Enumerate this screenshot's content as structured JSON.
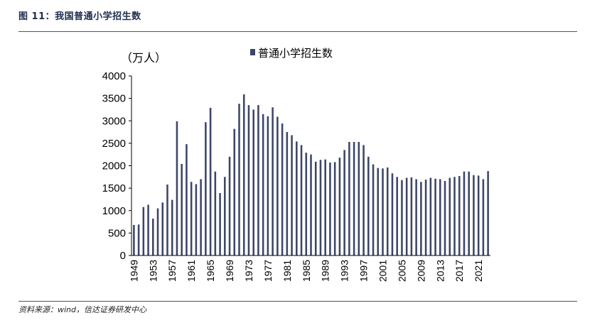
{
  "figure_title": "图 11：我国普通小学招生数",
  "source": "资料来源：wind，信达证券研发中心",
  "colors": {
    "bar": "#3d4668",
    "rule": "#555555",
    "title": "#1f2d50"
  },
  "chart_data": {
    "type": "bar",
    "title": "",
    "xlabel": "",
    "ylabel": "（万人）",
    "ylim": [
      0,
      4000
    ],
    "yticks": [
      0,
      500,
      1000,
      1500,
      2000,
      2500,
      3000,
      3500,
      4000
    ],
    "grid": false,
    "legend_position": "top-center",
    "series": [
      {
        "name": "普通小学招生数",
        "values": [
          680,
          690,
          1080,
          1130,
          820,
          1050,
          1180,
          1580,
          1240,
          2990,
          2040,
          2480,
          1640,
          1590,
          1700,
          2970,
          3290,
          1870,
          1390,
          1750,
          2200,
          2820,
          3380,
          3590,
          3350,
          3250,
          3350,
          3150,
          3100,
          3300,
          3090,
          2940,
          2750,
          2680,
          2540,
          2460,
          2290,
          2250,
          2090,
          2130,
          2140,
          2070,
          2080,
          2180,
          2350,
          2530,
          2530,
          2530,
          2460,
          2200,
          2030,
          1950,
          1940,
          1960,
          1830,
          1750,
          1680,
          1730,
          1740,
          1700,
          1640,
          1690,
          1730,
          1710,
          1700,
          1660,
          1730,
          1750,
          1770,
          1870,
          1870,
          1790,
          1780,
          1700,
          1880
        ]
      }
    ],
    "x": [
      1949,
      1950,
      1951,
      1952,
      1953,
      1954,
      1955,
      1956,
      1957,
      1958,
      1959,
      1960,
      1961,
      1962,
      1963,
      1964,
      1965,
      1966,
      1967,
      1968,
      1969,
      1970,
      1971,
      1972,
      1973,
      1974,
      1975,
      1976,
      1977,
      1978,
      1979,
      1980,
      1981,
      1982,
      1983,
      1984,
      1985,
      1986,
      1987,
      1988,
      1989,
      1990,
      1991,
      1992,
      1993,
      1994,
      1995,
      1996,
      1997,
      1998,
      1999,
      2000,
      2001,
      2002,
      2003,
      2004,
      2005,
      2006,
      2007,
      2008,
      2009,
      2010,
      2011,
      2012,
      2013,
      2014,
      2015,
      2016,
      2017,
      2018,
      2019,
      2020,
      2021,
      2022,
      2023
    ],
    "x_tick_labels": [
      "1949",
      "1953",
      "1957",
      "1961",
      "1965",
      "1969",
      "1973",
      "1977",
      "1981",
      "1985",
      "1989",
      "1993",
      "1997",
      "2001",
      "2005",
      "2009",
      "2013",
      "2017",
      "2021"
    ]
  }
}
